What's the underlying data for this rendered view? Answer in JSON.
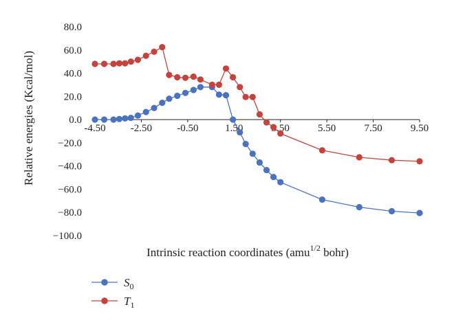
{
  "chart_data": {
    "type": "line",
    "xlabel": "Intrinsic reaction coordinates (amu",
    "xlabel_sup": "1/2",
    "xlabel_tail": " bohr)",
    "ylabel": "Relative energies (Kcal/mol)",
    "xlim": [
      -4.5,
      9.5
    ],
    "ylim": [
      -100,
      80
    ],
    "x_ticks": [
      -4.5,
      -2.5,
      -0.5,
      1.5,
      3.5,
      5.5,
      7.5,
      9.5
    ],
    "x_tick_labels": [
      "-4.50",
      "-2.50",
      "-0.50",
      "1.50",
      "3.50",
      "5.50",
      "7.50",
      "9.50"
    ],
    "y_ticks": [
      80,
      60,
      40,
      20,
      0,
      -20,
      -40,
      -60,
      -80,
      -100
    ],
    "y_tick_labels": [
      "80.0",
      "60.0",
      "40.0",
      "20.0",
      "0.0",
      "−20.0",
      "−40.0",
      "−60.0",
      "−80.0",
      "−100.0"
    ],
    "grid": false,
    "legend_position": "bottom-left",
    "series": [
      {
        "name": "S",
        "subscript": "0",
        "color": "#4a72c2",
        "points": [
          [
            -4.5,
            0.0
          ],
          [
            -4.1,
            0.0
          ],
          [
            -3.7,
            0.0
          ],
          [
            -3.45,
            0.5
          ],
          [
            -3.2,
            1.0
          ],
          [
            -2.95,
            1.5
          ],
          [
            -2.65,
            3.5
          ],
          [
            -2.3,
            6.5
          ],
          [
            -1.95,
            10.0
          ],
          [
            -1.6,
            14.5
          ],
          [
            -1.3,
            18.0
          ],
          [
            -0.95,
            20.5
          ],
          [
            -0.6,
            23.0
          ],
          [
            -0.25,
            25.5
          ],
          [
            0.05,
            28.0
          ],
          [
            0.55,
            28.0
          ],
          [
            0.85,
            21.5
          ],
          [
            1.15,
            21.0
          ],
          [
            1.45,
            0.0
          ],
          [
            1.75,
            -11.0
          ],
          [
            2.0,
            -21.0
          ],
          [
            2.3,
            -29.5
          ],
          [
            2.6,
            -37.0
          ],
          [
            2.9,
            -43.5
          ],
          [
            3.2,
            -49.5
          ],
          [
            3.5,
            -54.0
          ],
          [
            5.3,
            -69.0
          ],
          [
            6.9,
            -75.5
          ],
          [
            8.3,
            -79.0
          ],
          [
            9.5,
            -80.5
          ]
        ]
      },
      {
        "name": "T",
        "subscript": "1",
        "color": "#c8423c",
        "points": [
          [
            -4.5,
            48.0
          ],
          [
            -4.1,
            48.0
          ],
          [
            -3.7,
            48.0
          ],
          [
            -3.45,
            48.5
          ],
          [
            -3.2,
            48.5
          ],
          [
            -2.95,
            50.0
          ],
          [
            -2.65,
            51.5
          ],
          [
            -2.3,
            55.0
          ],
          [
            -1.95,
            58.5
          ],
          [
            -1.6,
            62.5
          ],
          [
            -1.3,
            38.5
          ],
          [
            -0.95,
            36.5
          ],
          [
            -0.6,
            36.0
          ],
          [
            -0.25,
            37.0
          ],
          [
            0.05,
            34.5
          ],
          [
            0.55,
            30.0
          ],
          [
            0.85,
            30.0
          ],
          [
            1.15,
            44.0
          ],
          [
            1.45,
            36.5
          ],
          [
            1.75,
            28.0
          ],
          [
            2.0,
            19.5
          ],
          [
            2.3,
            19.5
          ],
          [
            2.6,
            4.5
          ],
          [
            2.9,
            -2.5
          ],
          [
            3.2,
            -6.5
          ],
          [
            3.5,
            -12.0
          ],
          [
            5.3,
            -26.5
          ],
          [
            6.9,
            -32.5
          ],
          [
            8.3,
            -35.0
          ],
          [
            9.5,
            -36.0
          ]
        ]
      }
    ]
  }
}
